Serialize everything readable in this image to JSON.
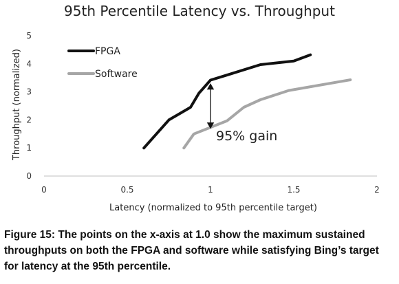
{
  "chart_data": {
    "type": "line",
    "title": "95th Percentile Latency vs. Throughput",
    "xlabel": "Latency (normalized to 95th percentile target)",
    "ylabel": "Throughput (normalized)",
    "xlim": [
      0,
      2
    ],
    "ylim": [
      0,
      5
    ],
    "x_ticks": [
      "0",
      "0.5",
      "1",
      "1.5",
      "2"
    ],
    "y_ticks": [
      "0",
      "1",
      "2",
      "3",
      "4",
      "5"
    ],
    "legend_position": "top-left",
    "grid": false,
    "series": [
      {
        "name": "FPGA",
        "color": "#111111",
        "points": [
          [
            0.6,
            1.0
          ],
          [
            0.75,
            2.0
          ],
          [
            0.88,
            2.45
          ],
          [
            0.93,
            2.95
          ],
          [
            1.0,
            3.42
          ],
          [
            1.1,
            3.6
          ],
          [
            1.3,
            3.97
          ],
          [
            1.5,
            4.1
          ],
          [
            1.6,
            4.32
          ]
        ]
      },
      {
        "name": "Software",
        "color": "#a6a6a6",
        "points": [
          [
            0.84,
            1.0
          ],
          [
            0.9,
            1.5
          ],
          [
            1.1,
            1.97
          ],
          [
            1.2,
            2.45
          ],
          [
            1.3,
            2.72
          ],
          [
            1.47,
            3.05
          ],
          [
            1.84,
            3.43
          ]
        ]
      }
    ],
    "annotation": {
      "text": "95% gain",
      "arrow_x": 1.0,
      "arrow_y_from": 1.62,
      "arrow_y_to": 3.42
    }
  },
  "caption": "Figure 15: The points on the x-axis at 1.0 show the maximum sustained throughputs on both the FPGA and software while satisfying Bing’s target for latency at the 95th percentile."
}
